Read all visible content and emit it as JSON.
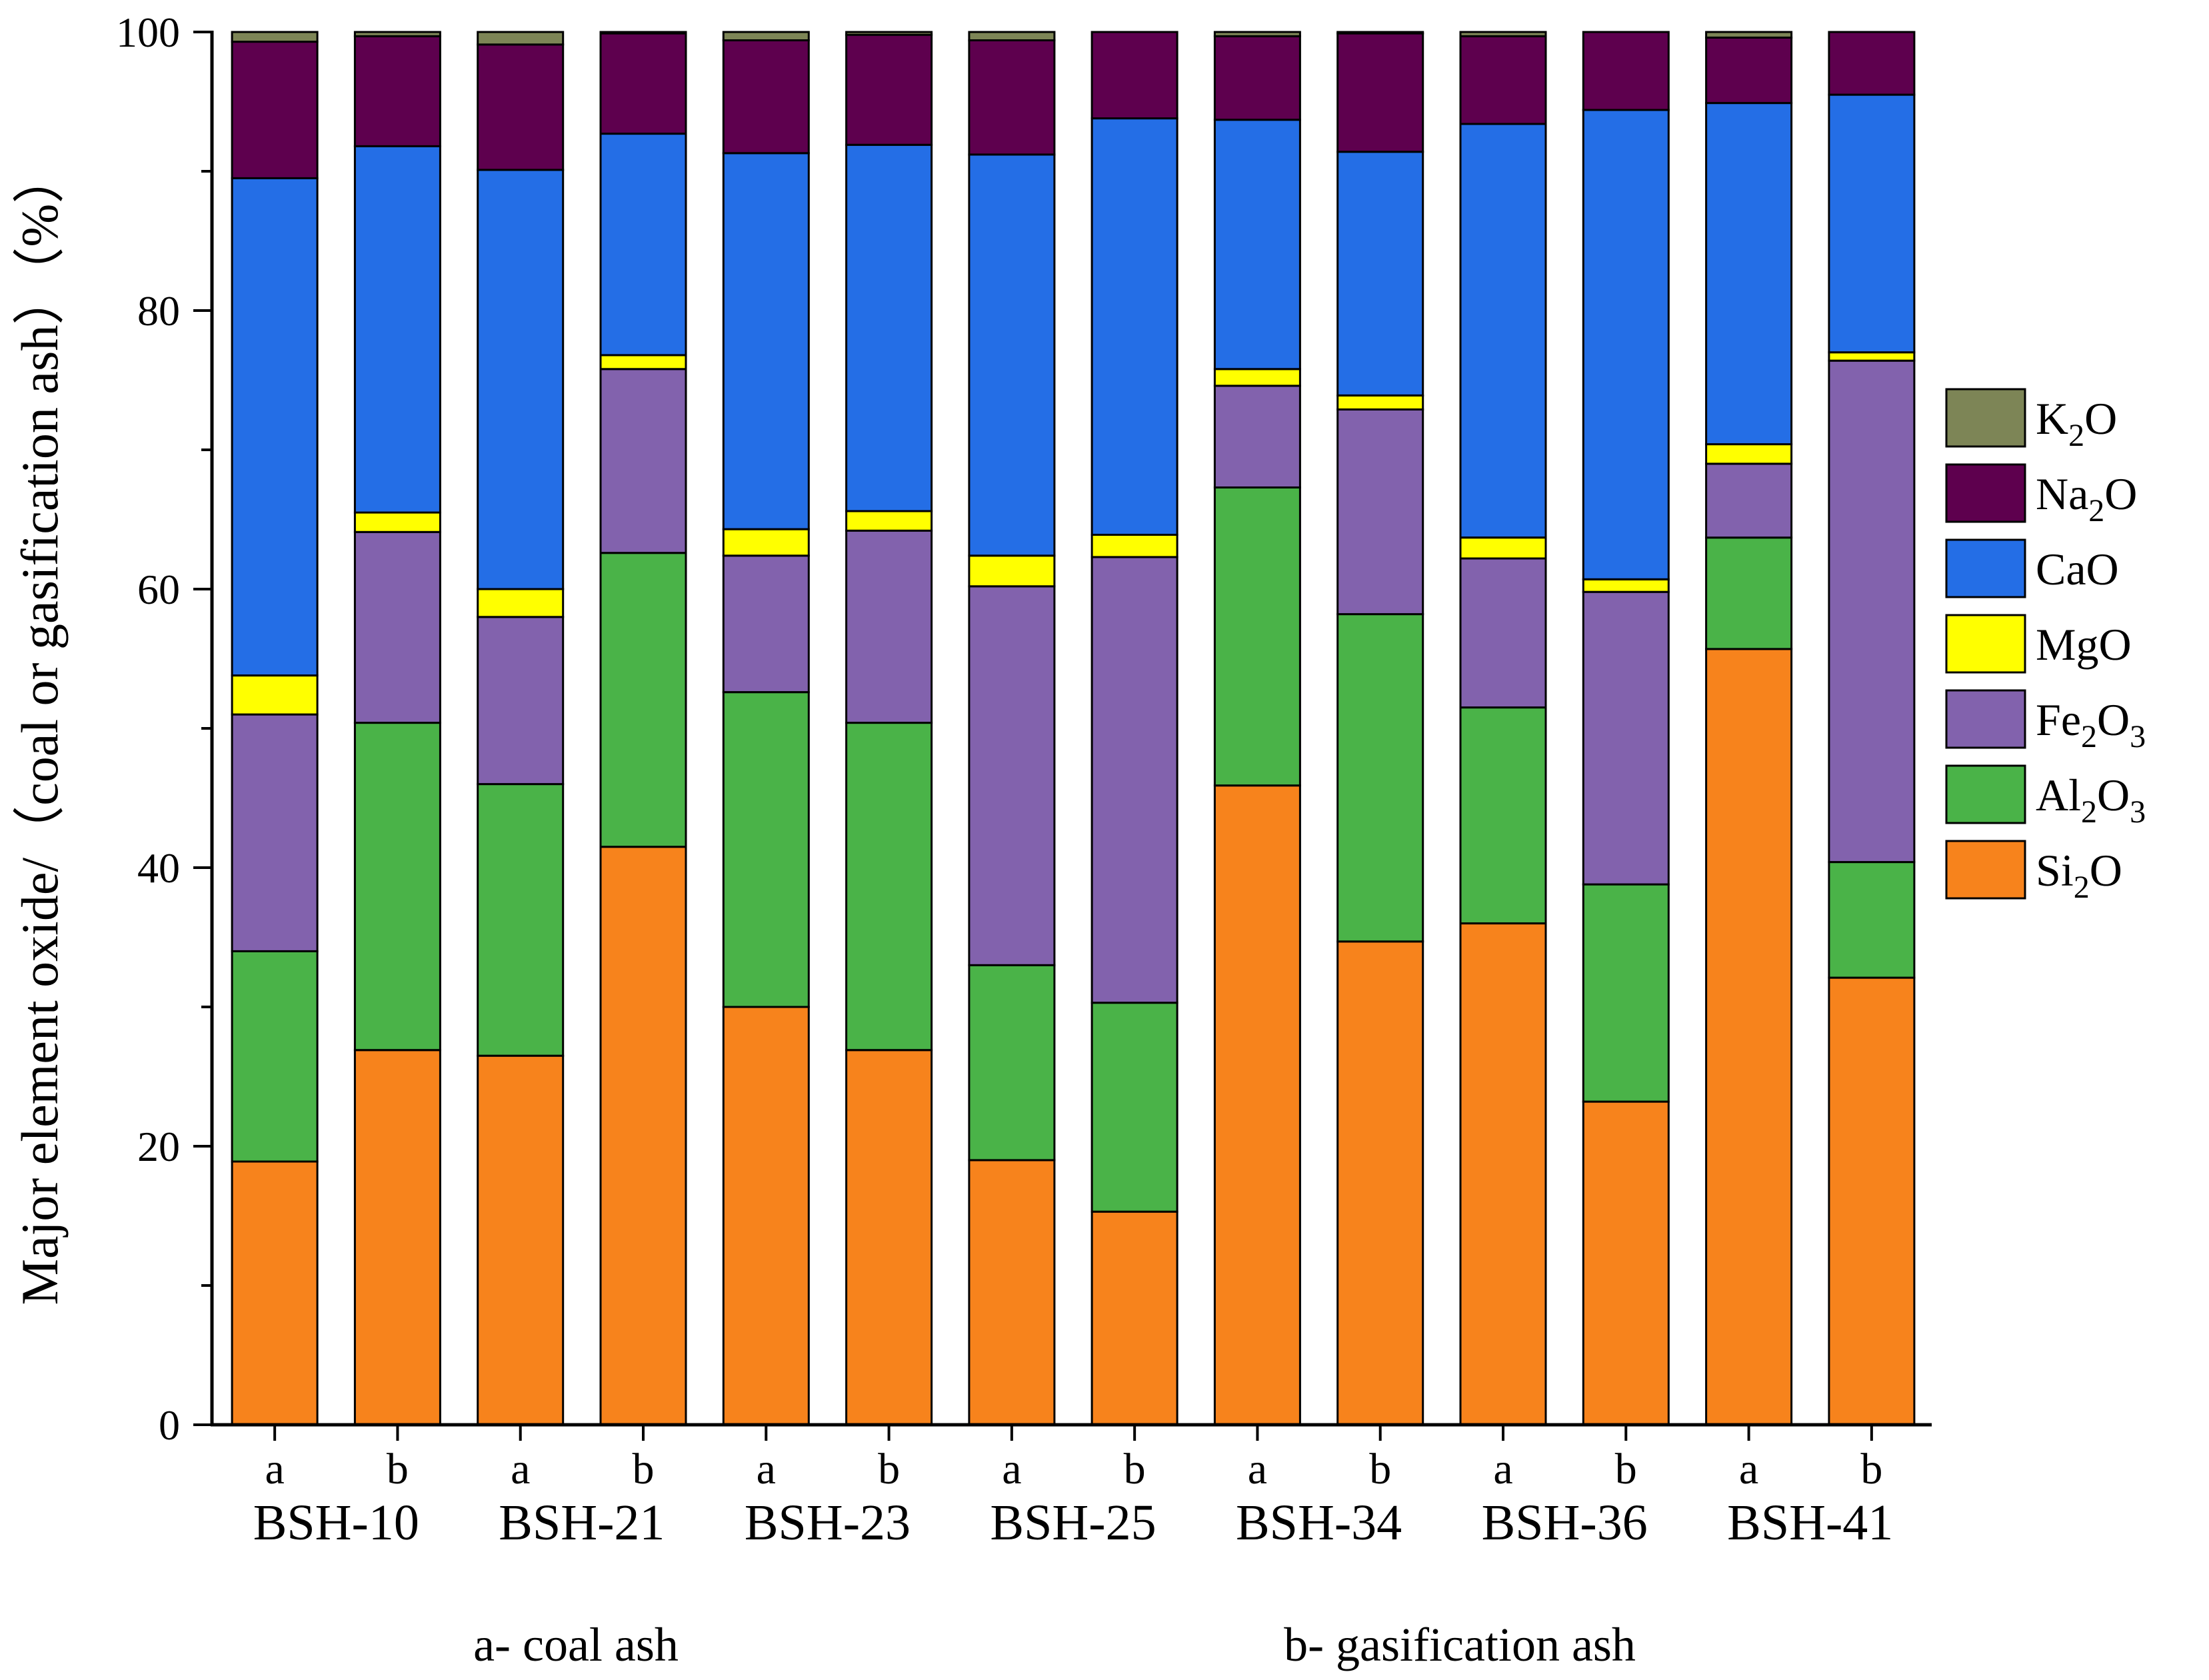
{
  "chart_data": {
    "type": "bar",
    "stacked": true,
    "title": "",
    "ylabel_parts": [
      "Major element oxide/",
      "（coal or gasification ash）",
      "（%）"
    ],
    "ylim": [
      0,
      100
    ],
    "yticks": [
      0,
      20,
      40,
      60,
      80,
      100
    ],
    "bar_labels": [
      "a",
      "b",
      "a",
      "b",
      "a",
      "b",
      "a",
      "b",
      "a",
      "b",
      "a",
      "b",
      "a",
      "b"
    ],
    "groups": [
      "BSH-10",
      "BSH-21",
      "BSH-23",
      "BSH-25",
      "BSH-34",
      "BSH-36",
      "BSH-41"
    ],
    "notes": {
      "coal": "a- coal ash",
      "gasification": "b- gasification ash"
    },
    "series": [
      {
        "name": "Si2O",
        "label_base": "Si",
        "label_sub": "2",
        "label_tail": "O",
        "color": "#F7831C",
        "values": [
          18.9,
          26.9,
          26.5,
          41.5,
          30.0,
          26.9,
          19.0,
          15.3,
          45.9,
          34.7,
          36.0,
          23.2,
          55.7,
          32.1
        ]
      },
      {
        "name": "Al2O3",
        "label_base": "Al",
        "label_sub": "2",
        "label_tail": "O",
        "label_sub2": "3",
        "color": "#4AB348",
        "values": [
          15.1,
          23.5,
          19.5,
          21.1,
          22.6,
          23.5,
          14.0,
          15.0,
          21.4,
          23.5,
          15.5,
          15.6,
          8.0,
          8.3
        ]
      },
      {
        "name": "Fe2O3",
        "label_base": "Fe",
        "label_sub": "2",
        "label_tail": "O",
        "label_sub2": "3",
        "color": "#8262AD",
        "values": [
          17.0,
          13.7,
          12.0,
          13.2,
          9.8,
          13.8,
          27.2,
          32.0,
          7.3,
          14.7,
          10.7,
          21.0,
          5.3,
          36.0
        ]
      },
      {
        "name": "MgO",
        "label_base": "MgO",
        "color": "#FFFF00",
        "values": [
          2.8,
          1.4,
          2.0,
          1.0,
          1.9,
          1.4,
          2.2,
          1.6,
          1.2,
          1.0,
          1.5,
          0.9,
          1.4,
          0.6
        ]
      },
      {
        "name": "CaO",
        "label_base": "CaO",
        "color": "#246EE6",
        "values": [
          35.7,
          26.3,
          30.1,
          15.9,
          27.0,
          26.3,
          28.8,
          29.9,
          17.9,
          17.5,
          29.7,
          33.7,
          24.5,
          18.5
        ]
      },
      {
        "name": "Na2O",
        "label_base": "Na",
        "label_sub": "2",
        "label_tail": "O",
        "color": "#5E004E",
        "values": [
          9.8,
          7.9,
          9.0,
          7.2,
          8.1,
          7.9,
          8.2,
          6.2,
          6.0,
          8.5,
          6.3,
          5.6,
          4.7,
          4.5
        ]
      },
      {
        "name": "K2O",
        "label_base": "K",
        "label_sub": "2",
        "label_tail": "O",
        "color": "#7D8556",
        "values": [
          0.7,
          0.3,
          0.9,
          0.1,
          0.6,
          0.2,
          0.6,
          0.0,
          0.3,
          0.1,
          0.3,
          0.0,
          0.4,
          0.0
        ]
      }
    ],
    "legend_position": "right"
  }
}
